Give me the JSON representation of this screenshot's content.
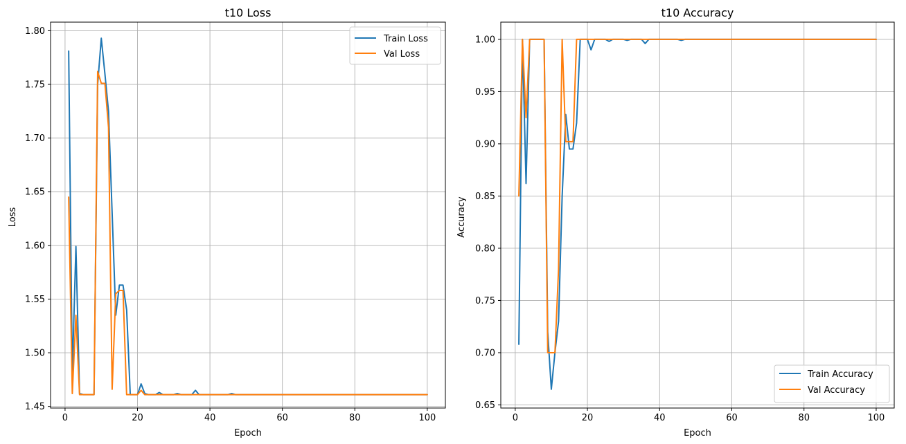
{
  "chart_data": [
    {
      "type": "line",
      "title": "t10 Loss",
      "xlabel": "Epoch",
      "ylabel": "Loss",
      "xlim": [
        -4,
        105
      ],
      "ylim": [
        1.4485,
        1.808
      ],
      "xticks": [
        0,
        20,
        40,
        60,
        80,
        100
      ],
      "xtick_labels": [
        "0",
        "20",
        "40",
        "60",
        "80",
        "100"
      ],
      "yticks": [
        1.45,
        1.5,
        1.55,
        1.6,
        1.65,
        1.7,
        1.75,
        1.8
      ],
      "ytick_labels": [
        "1.45",
        "1.50",
        "1.55",
        "1.60",
        "1.65",
        "1.70",
        "1.75",
        "1.80"
      ],
      "grid": true,
      "legend_position": "top-right",
      "x": [
        1,
        2,
        3,
        4,
        5,
        6,
        7,
        8,
        9,
        10,
        11,
        12,
        13,
        14,
        15,
        16,
        17,
        18,
        19,
        20,
        21,
        22,
        23,
        24,
        25,
        26,
        27,
        28,
        29,
        30,
        31,
        32,
        33,
        34,
        35,
        36,
        37,
        38,
        39,
        40,
        41,
        42,
        43,
        44,
        45,
        46,
        47,
        48,
        49,
        50,
        51,
        52,
        53,
        54,
        55,
        56,
        57,
        58,
        59,
        60,
        61,
        62,
        63,
        64,
        65,
        66,
        67,
        68,
        69,
        70,
        71,
        72,
        73,
        74,
        75,
        76,
        77,
        78,
        79,
        80,
        81,
        82,
        83,
        84,
        85,
        86,
        87,
        88,
        89,
        90,
        91,
        92,
        93,
        94,
        95,
        96,
        97,
        98,
        99,
        100
      ],
      "series": [
        {
          "name": "Train Loss",
          "color": "#1f77b4",
          "values": [
            1.781,
            1.48,
            1.599,
            1.462,
            1.461,
            1.461,
            1.461,
            1.461,
            1.75,
            1.793,
            1.76,
            1.725,
            1.63,
            1.535,
            1.563,
            1.563,
            1.54,
            1.461,
            1.461,
            1.461,
            1.471,
            1.462,
            1.461,
            1.461,
            1.461,
            1.463,
            1.461,
            1.461,
            1.461,
            1.461,
            1.462,
            1.461,
            1.461,
            1.461,
            1.461,
            1.465,
            1.461,
            1.461,
            1.461,
            1.461,
            1.461,
            1.461,
            1.461,
            1.461,
            1.461,
            1.462,
            1.461,
            1.461,
            1.461,
            1.461,
            1.461,
            1.461,
            1.461,
            1.461,
            1.461,
            1.461,
            1.461,
            1.461,
            1.461,
            1.461,
            1.461,
            1.461,
            1.461,
            1.461,
            1.461,
            1.461,
            1.461,
            1.461,
            1.461,
            1.461,
            1.461,
            1.461,
            1.461,
            1.461,
            1.461,
            1.461,
            1.461,
            1.461,
            1.461,
            1.461,
            1.461,
            1.461,
            1.461,
            1.461,
            1.461,
            1.461,
            1.461,
            1.461,
            1.461,
            1.461,
            1.461,
            1.461,
            1.461,
            1.461,
            1.461,
            1.461,
            1.461,
            1.461,
            1.461,
            1.461
          ]
        },
        {
          "name": "Val Loss",
          "color": "#ff7f0e",
          "values": [
            1.645,
            1.462,
            1.535,
            1.461,
            1.461,
            1.461,
            1.461,
            1.461,
            1.762,
            1.751,
            1.751,
            1.71,
            1.466,
            1.555,
            1.558,
            1.558,
            1.461,
            1.461,
            1.461,
            1.461,
            1.465,
            1.461,
            1.461,
            1.461,
            1.461,
            1.461,
            1.461,
            1.461,
            1.461,
            1.461,
            1.461,
            1.461,
            1.461,
            1.461,
            1.461,
            1.461,
            1.461,
            1.461,
            1.461,
            1.461,
            1.461,
            1.461,
            1.461,
            1.461,
            1.461,
            1.461,
            1.461,
            1.461,
            1.461,
            1.461,
            1.461,
            1.461,
            1.461,
            1.461,
            1.461,
            1.461,
            1.461,
            1.461,
            1.461,
            1.461,
            1.461,
            1.461,
            1.461,
            1.461,
            1.461,
            1.461,
            1.461,
            1.461,
            1.461,
            1.461,
            1.461,
            1.461,
            1.461,
            1.461,
            1.461,
            1.461,
            1.461,
            1.461,
            1.461,
            1.461,
            1.461,
            1.461,
            1.461,
            1.461,
            1.461,
            1.461,
            1.461,
            1.461,
            1.461,
            1.461,
            1.461,
            1.461,
            1.461,
            1.461,
            1.461,
            1.461,
            1.461,
            1.461,
            1.461,
            1.461
          ]
        }
      ]
    },
    {
      "type": "line",
      "title": "t10 Accuracy",
      "xlabel": "Epoch",
      "ylabel": "Accuracy",
      "xlim": [
        -4,
        105
      ],
      "ylim": [
        0.647,
        1.0165
      ],
      "xticks": [
        0,
        20,
        40,
        60,
        80,
        100
      ],
      "xtick_labels": [
        "0",
        "20",
        "40",
        "60",
        "80",
        "100"
      ],
      "yticks": [
        0.65,
        0.7,
        0.75,
        0.8,
        0.85,
        0.9,
        0.95,
        1.0
      ],
      "ytick_labels": [
        "0.65",
        "0.70",
        "0.75",
        "0.80",
        "0.85",
        "0.90",
        "0.95",
        "1.00"
      ],
      "grid": true,
      "legend_position": "bottom-right",
      "x": [
        1,
        2,
        3,
        4,
        5,
        6,
        7,
        8,
        9,
        10,
        11,
        12,
        13,
        14,
        15,
        16,
        17,
        18,
        19,
        20,
        21,
        22,
        23,
        24,
        25,
        26,
        27,
        28,
        29,
        30,
        31,
        32,
        33,
        34,
        35,
        36,
        37,
        38,
        39,
        40,
        41,
        42,
        43,
        44,
        45,
        46,
        47,
        48,
        49,
        50,
        51,
        52,
        53,
        54,
        55,
        56,
        57,
        58,
        59,
        60,
        61,
        62,
        63,
        64,
        65,
        66,
        67,
        68,
        69,
        70,
        71,
        72,
        73,
        74,
        75,
        76,
        77,
        78,
        79,
        80,
        81,
        82,
        83,
        84,
        85,
        86,
        87,
        88,
        89,
        90,
        91,
        92,
        93,
        94,
        95,
        96,
        97,
        98,
        99,
        100
      ],
      "series": [
        {
          "name": "Train Accuracy",
          "color": "#1f77b4",
          "values": [
            0.708,
            1.0,
            0.862,
            1.0,
            1.0,
            1.0,
            1.0,
            1.0,
            0.72,
            0.665,
            0.7,
            0.73,
            0.85,
            0.928,
            0.895,
            0.895,
            0.92,
            1.0,
            1.0,
            1.0,
            0.99,
            1.0,
            1.0,
            1.0,
            1.0,
            0.998,
            1.0,
            1.0,
            1.0,
            1.0,
            0.999,
            1.0,
            1.0,
            1.0,
            1.0,
            0.996,
            1.0,
            1.0,
            1.0,
            1.0,
            1.0,
            1.0,
            1.0,
            1.0,
            1.0,
            0.999,
            1.0,
            1.0,
            1.0,
            1.0,
            1.0,
            1.0,
            1.0,
            1.0,
            1.0,
            1.0,
            1.0,
            1.0,
            1.0,
            1.0,
            1.0,
            1.0,
            1.0,
            1.0,
            1.0,
            1.0,
            1.0,
            1.0,
            1.0,
            1.0,
            1.0,
            1.0,
            1.0,
            1.0,
            1.0,
            1.0,
            1.0,
            1.0,
            1.0,
            1.0,
            1.0,
            1.0,
            1.0,
            1.0,
            1.0,
            1.0,
            1.0,
            1.0,
            1.0,
            1.0,
            1.0,
            1.0,
            1.0,
            1.0,
            1.0,
            1.0,
            1.0,
            1.0,
            1.0,
            1.0
          ]
        },
        {
          "name": "Val Accuracy",
          "color": "#ff7f0e",
          "values": [
            0.85,
            1.0,
            0.925,
            1.0,
            1.0,
            1.0,
            1.0,
            1.0,
            0.7,
            0.7,
            0.7,
            0.78,
            1.0,
            0.902,
            0.902,
            0.902,
            1.0,
            1.0,
            1.0,
            1.0,
            1.0,
            1.0,
            1.0,
            1.0,
            1.0,
            1.0,
            1.0,
            1.0,
            1.0,
            1.0,
            1.0,
            1.0,
            1.0,
            1.0,
            1.0,
            1.0,
            1.0,
            1.0,
            1.0,
            1.0,
            1.0,
            1.0,
            1.0,
            1.0,
            1.0,
            1.0,
            1.0,
            1.0,
            1.0,
            1.0,
            1.0,
            1.0,
            1.0,
            1.0,
            1.0,
            1.0,
            1.0,
            1.0,
            1.0,
            1.0,
            1.0,
            1.0,
            1.0,
            1.0,
            1.0,
            1.0,
            1.0,
            1.0,
            1.0,
            1.0,
            1.0,
            1.0,
            1.0,
            1.0,
            1.0,
            1.0,
            1.0,
            1.0,
            1.0,
            1.0,
            1.0,
            1.0,
            1.0,
            1.0,
            1.0,
            1.0,
            1.0,
            1.0,
            1.0,
            1.0,
            1.0,
            1.0,
            1.0,
            1.0,
            1.0,
            1.0,
            1.0,
            1.0,
            1.0,
            1.0
          ]
        }
      ]
    }
  ]
}
